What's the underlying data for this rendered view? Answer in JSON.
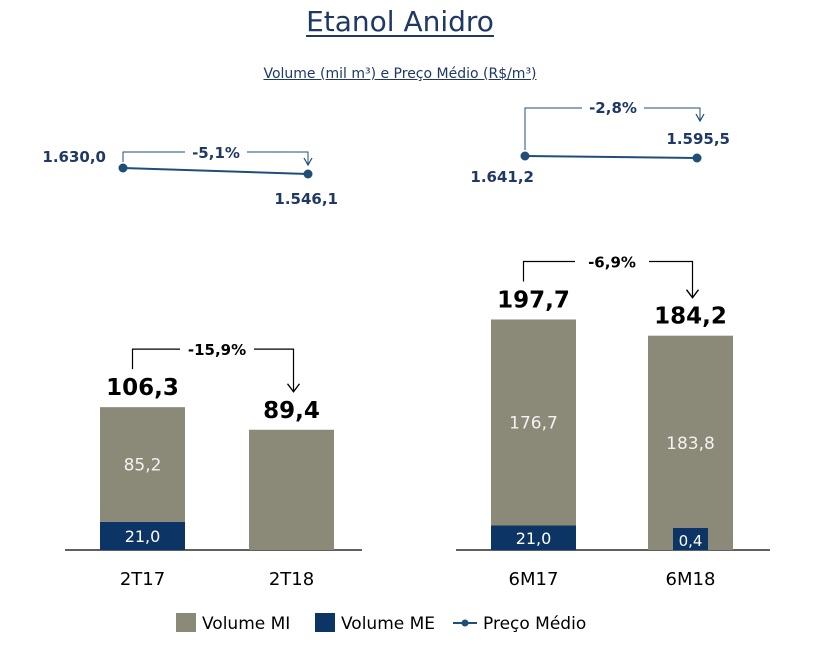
{
  "title": "Etanol Anidro",
  "subtitle": "Volume (mil m³) e Preço Médio (R$/m³)",
  "colors": {
    "volume_mi": "#8b8a79",
    "volume_me": "#0c3565",
    "preco_medio": "#1f4e79",
    "text_dark": "#1f3864",
    "axis": "#000000"
  },
  "chart_data": [
    {
      "type": "bar",
      "stacked": true,
      "categories": [
        "2T17",
        "2T18"
      ],
      "series": [
        {
          "name": "Volume ME",
          "values": [
            21.0,
            0
          ],
          "labels": [
            "21,0",
            ""
          ]
        },
        {
          "name": "Volume MI",
          "values": [
            85.2,
            89.4
          ],
          "labels": [
            "85,2",
            ""
          ]
        }
      ],
      "totals": [
        106.3,
        89.4
      ],
      "total_labels": [
        "106,3",
        "89,4"
      ],
      "change_label": "-15,9%",
      "price_line": {
        "name": "Preço Médio",
        "values": [
          1630.0,
          1546.1
        ],
        "labels": [
          "1.630,0",
          "1.546,1"
        ],
        "change_label": "-5,1%"
      }
    },
    {
      "type": "bar",
      "stacked": true,
      "categories": [
        "6M17",
        "6M18"
      ],
      "series": [
        {
          "name": "Volume ME",
          "values": [
            21.0,
            0.4
          ],
          "labels": [
            "21,0",
            "0,4"
          ]
        },
        {
          "name": "Volume MI",
          "values": [
            176.7,
            183.8
          ],
          "labels": [
            "176,7",
            "183,8"
          ]
        }
      ],
      "totals": [
        197.7,
        184.2
      ],
      "total_labels": [
        "197,7",
        "184,2"
      ],
      "change_label": "-6,9%",
      "price_line": {
        "name": "Preço Médio",
        "values": [
          1641.2,
          1595.5
        ],
        "labels": [
          "1.641,2",
          "1.595,5"
        ],
        "change_label": "-2,8%"
      }
    }
  ],
  "legend": {
    "items": [
      {
        "name": "Volume MI",
        "kind": "box",
        "color": "#8b8a79"
      },
      {
        "name": "Volume ME",
        "kind": "box",
        "color": "#0c3565"
      },
      {
        "name": "Preço Médio",
        "kind": "line",
        "color": "#1f4e79"
      }
    ],
    "placement": "bottom"
  }
}
